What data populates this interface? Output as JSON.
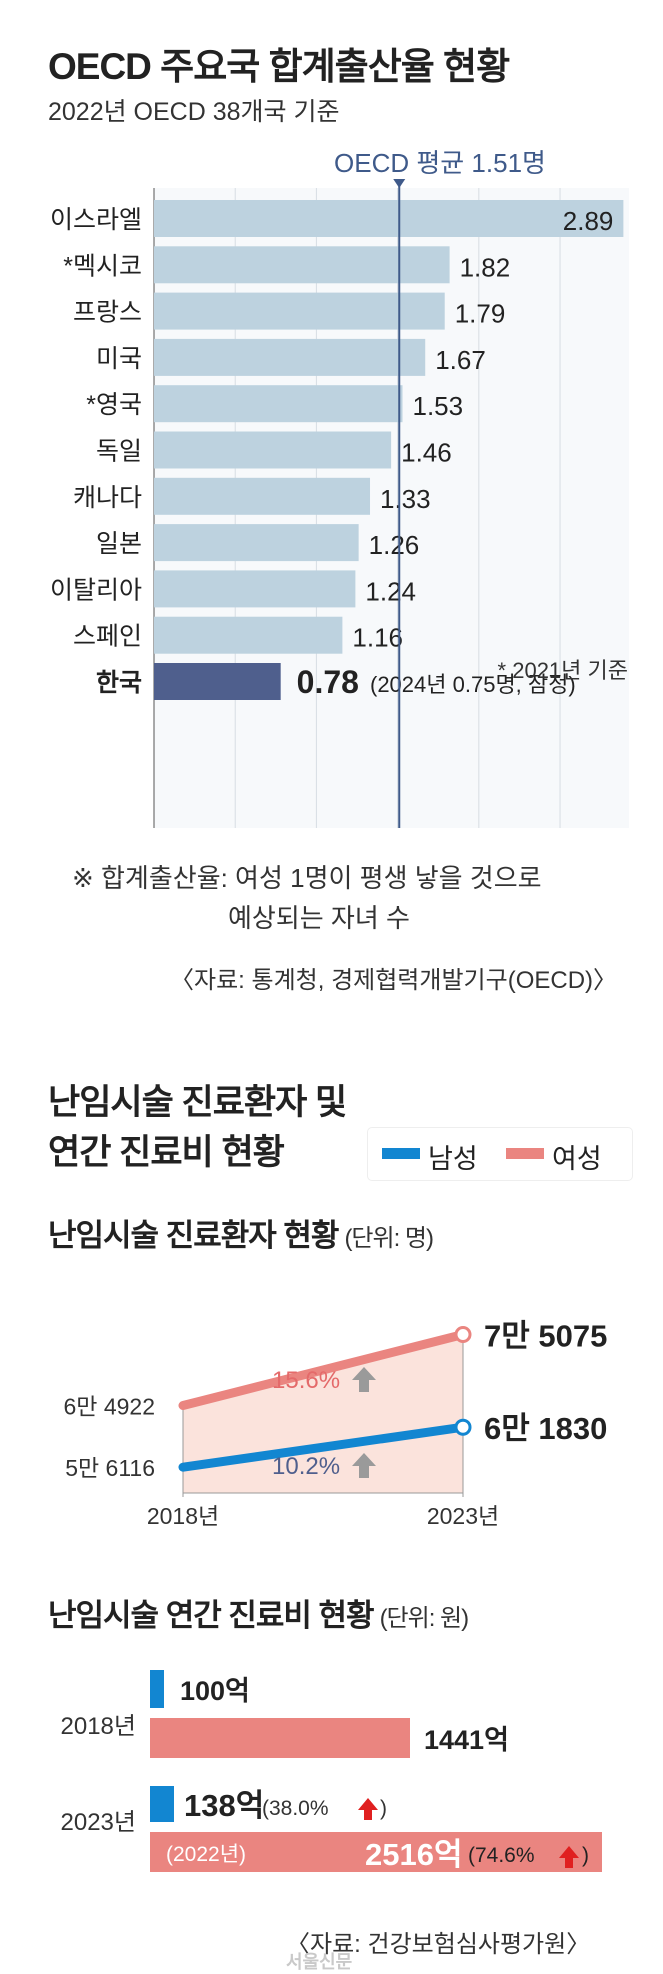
{
  "section1": {
    "title": "OECD 주요국 합계출산율 현황",
    "subtitle": "2022년 OECD 38개국 기준",
    "avg_label": "OECD 평균 1.51명",
    "footnote": "* 2021년 기준",
    "korea_note": "(2024년 0.75명, 잠정)",
    "definition_line1": "※ 합계출산율: 여성 1명이 평생 낳을 것으로",
    "definition_line2": "예상되는 자녀 수",
    "source": "〈자료: 통계청, 경제협력개발기구(OECD)〉"
  },
  "section2": {
    "title_line1": "난임시술 진료환자 및",
    "title_line2": "연간 진료비 현황",
    "legend_male": "남성",
    "legend_female": "여성",
    "patients_title": "난임시술 진료환자 현황",
    "patients_unit": "(단위: 명)",
    "cost_title": "난임시술 연간 진료비 현황",
    "cost_unit": "(단위: 원)",
    "source": "〈자료: 건강보험심사평가원〉"
  },
  "watermark": "서울신문",
  "colors": {
    "bar": "#bdd2df",
    "korea_bar": "#4f5f8d",
    "avg_line": "#3f5a8a",
    "male": "#1286d1",
    "female": "#ea8580",
    "female_fill": "#fbe3dc",
    "arrow_gray": "#9a9a9a",
    "arrow_red": "#e02020"
  },
  "chart_data": [
    {
      "type": "bar",
      "orientation": "horizontal",
      "categories": [
        "이스라엘",
        "*멕시코",
        "프랑스",
        "미국",
        "*영국",
        "독일",
        "캐나다",
        "일본",
        "이탈리아",
        "스페인",
        "한국"
      ],
      "values": [
        2.89,
        1.82,
        1.79,
        1.67,
        1.53,
        1.46,
        1.33,
        1.26,
        1.24,
        1.16,
        0.78
      ],
      "labels": [
        "2.89",
        "1.82",
        "1.79",
        "1.67",
        "1.53",
        "1.46",
        "1.33",
        "1.26",
        "1.24",
        "1.16",
        "0.78"
      ],
      "reference_line": 1.51,
      "xlim": [
        0,
        2.9
      ],
      "grid": true
    },
    {
      "type": "line",
      "x": [
        "2018년",
        "2023년"
      ],
      "series": [
        {
          "name": "여성",
          "values": [
            64922,
            75075
          ],
          "labels": [
            "6만 4922",
            "7만 5075"
          ],
          "change": "15.6%"
        },
        {
          "name": "남성",
          "values": [
            56116,
            61830
          ],
          "labels": [
            "5만 6116",
            "6만 1830"
          ],
          "change": "10.2%"
        }
      ]
    },
    {
      "type": "bar",
      "orientation": "horizontal",
      "categories": [
        "2018년",
        "2023년"
      ],
      "series": [
        {
          "name": "남성",
          "values": [
            100,
            138
          ],
          "labels": [
            "100억",
            "138억"
          ],
          "change": [
            null,
            "38.0%"
          ]
        },
        {
          "name": "여성",
          "values": [
            1441,
            2516
          ],
          "labels": [
            "1441억",
            "2516억"
          ],
          "change": [
            null,
            "74.6%"
          ],
          "notes": [
            null,
            "(2022년)"
          ]
        }
      ]
    }
  ]
}
